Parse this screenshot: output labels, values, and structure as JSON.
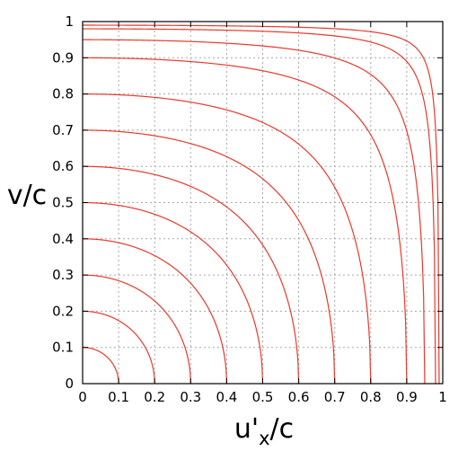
{
  "chart_data": {
    "type": "line",
    "title": "",
    "xlabel": {
      "main": "u'",
      "subscript": "x",
      "suffix": "/c"
    },
    "ylabel": "v/c",
    "xlim": [
      0,
      1
    ],
    "ylim": [
      0,
      1
    ],
    "grid": true,
    "line_color": "#e8392b",
    "xticks": [
      "0",
      "0.1",
      "0.2",
      "0.3",
      "0.4",
      "0.5",
      "0.6",
      "0.7",
      "0.8",
      "0.9",
      "1"
    ],
    "yticks": [
      "0",
      "0.1",
      "0.2",
      "0.3",
      "0.4",
      "0.5",
      "0.6",
      "0.7",
      "0.8",
      "0.9",
      "1"
    ],
    "series": [
      {
        "x_intercept": 0.1
      },
      {
        "x_intercept": 0.2
      },
      {
        "x_intercept": 0.3
      },
      {
        "x_intercept": 0.4
      },
      {
        "x_intercept": 0.5
      },
      {
        "x_intercept": 0.6
      },
      {
        "x_intercept": 0.7
      },
      {
        "x_intercept": 0.8
      },
      {
        "x_intercept": 0.9
      },
      {
        "x_intercept": 0.95
      },
      {
        "x_intercept": 0.98
      },
      {
        "x_intercept": 0.99
      }
    ]
  }
}
